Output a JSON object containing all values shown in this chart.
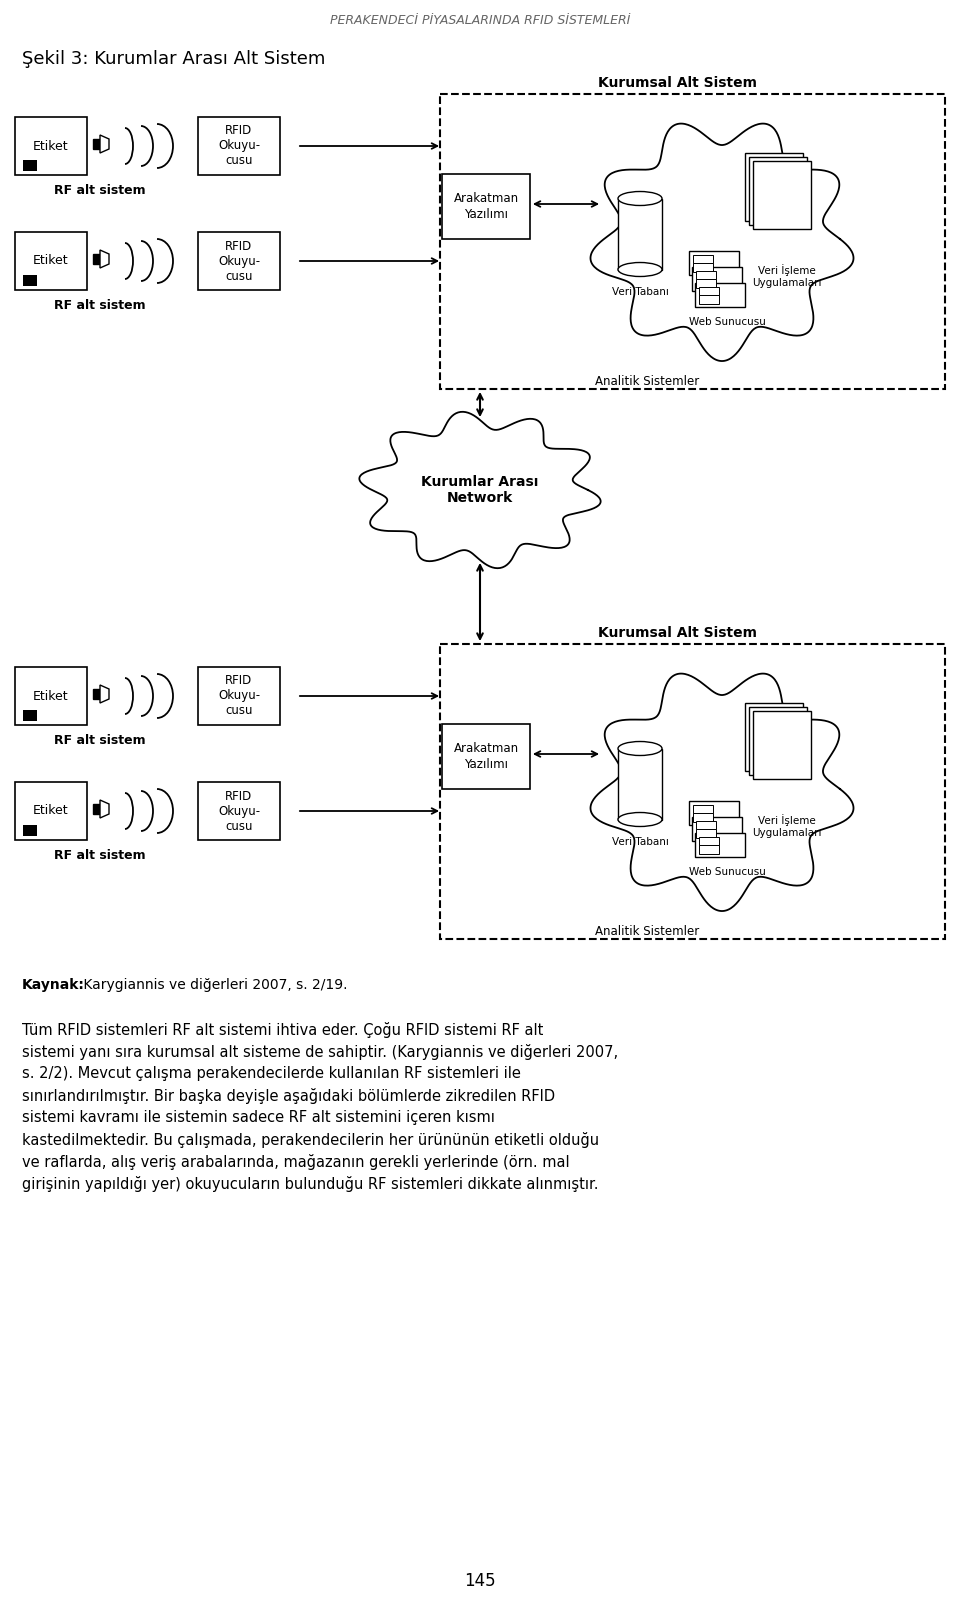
{
  "header": "PERAKENDECİ PİYASALARINDA RFID SİSTEMLERİ",
  "figure_title": "Şekil 3: Kurumlar Arası Alt Sistem",
  "kurumsal_label": "Kurumsal Alt Sistem",
  "kurumlar_arasi": "Kurumlar Arası\nNetwork",
  "rf_alt_sistem": "RF alt sistem",
  "arakatman_yazilimi": "Arakatman\nYazılımı",
  "veri_tabani": "Veri Tabanı",
  "veri_isleme": "Veri İşleme\nUygulamaları",
  "web_sunucusu": "Web Sunucusu",
  "analitik": "Analitik Sistemler",
  "rfid_okuyucu": "RFID\nOkuyu-\ncusu",
  "etiket": "Etiket",
  "kaynak_bold": "Kaynak:",
  "kaynak_rest": " Karygiannis ve diğerleri 2007, s. 2/19.",
  "para1_lines": [
    "Tüm RFID sistemleri RF alt sistemi ihtiva eder. Çoğu RFID sistemi RF alt",
    "sistemi yanı sıra kurumsal alt sisteme de sahiptir. (Karygiannis ve diğerleri 2007,",
    "s. 2/2). Mevcut çalışma perakendecilerde kullanılan RF sistemleri ile",
    "sınırlandırılmıştır. Bir başka deyişle aşağıdaki bölümlerde zikredilen RFID",
    "sistemi kavramı ile sistemin sadece RF alt sistemini içeren kısmı",
    "kastedilmektedir. Bu çalışmada, perakendecilerin her ürününün etiketli olduğu",
    "ve raflarda, alış veriş arabalarında, mağazanın gerekli yerlerinde (örn. mal",
    "girişinin yapıldığı yer) okuyucuların bulunduğu RF sistemleri dikkate alınmıştır."
  ],
  "page_number": "145",
  "bg_color": "#ffffff"
}
